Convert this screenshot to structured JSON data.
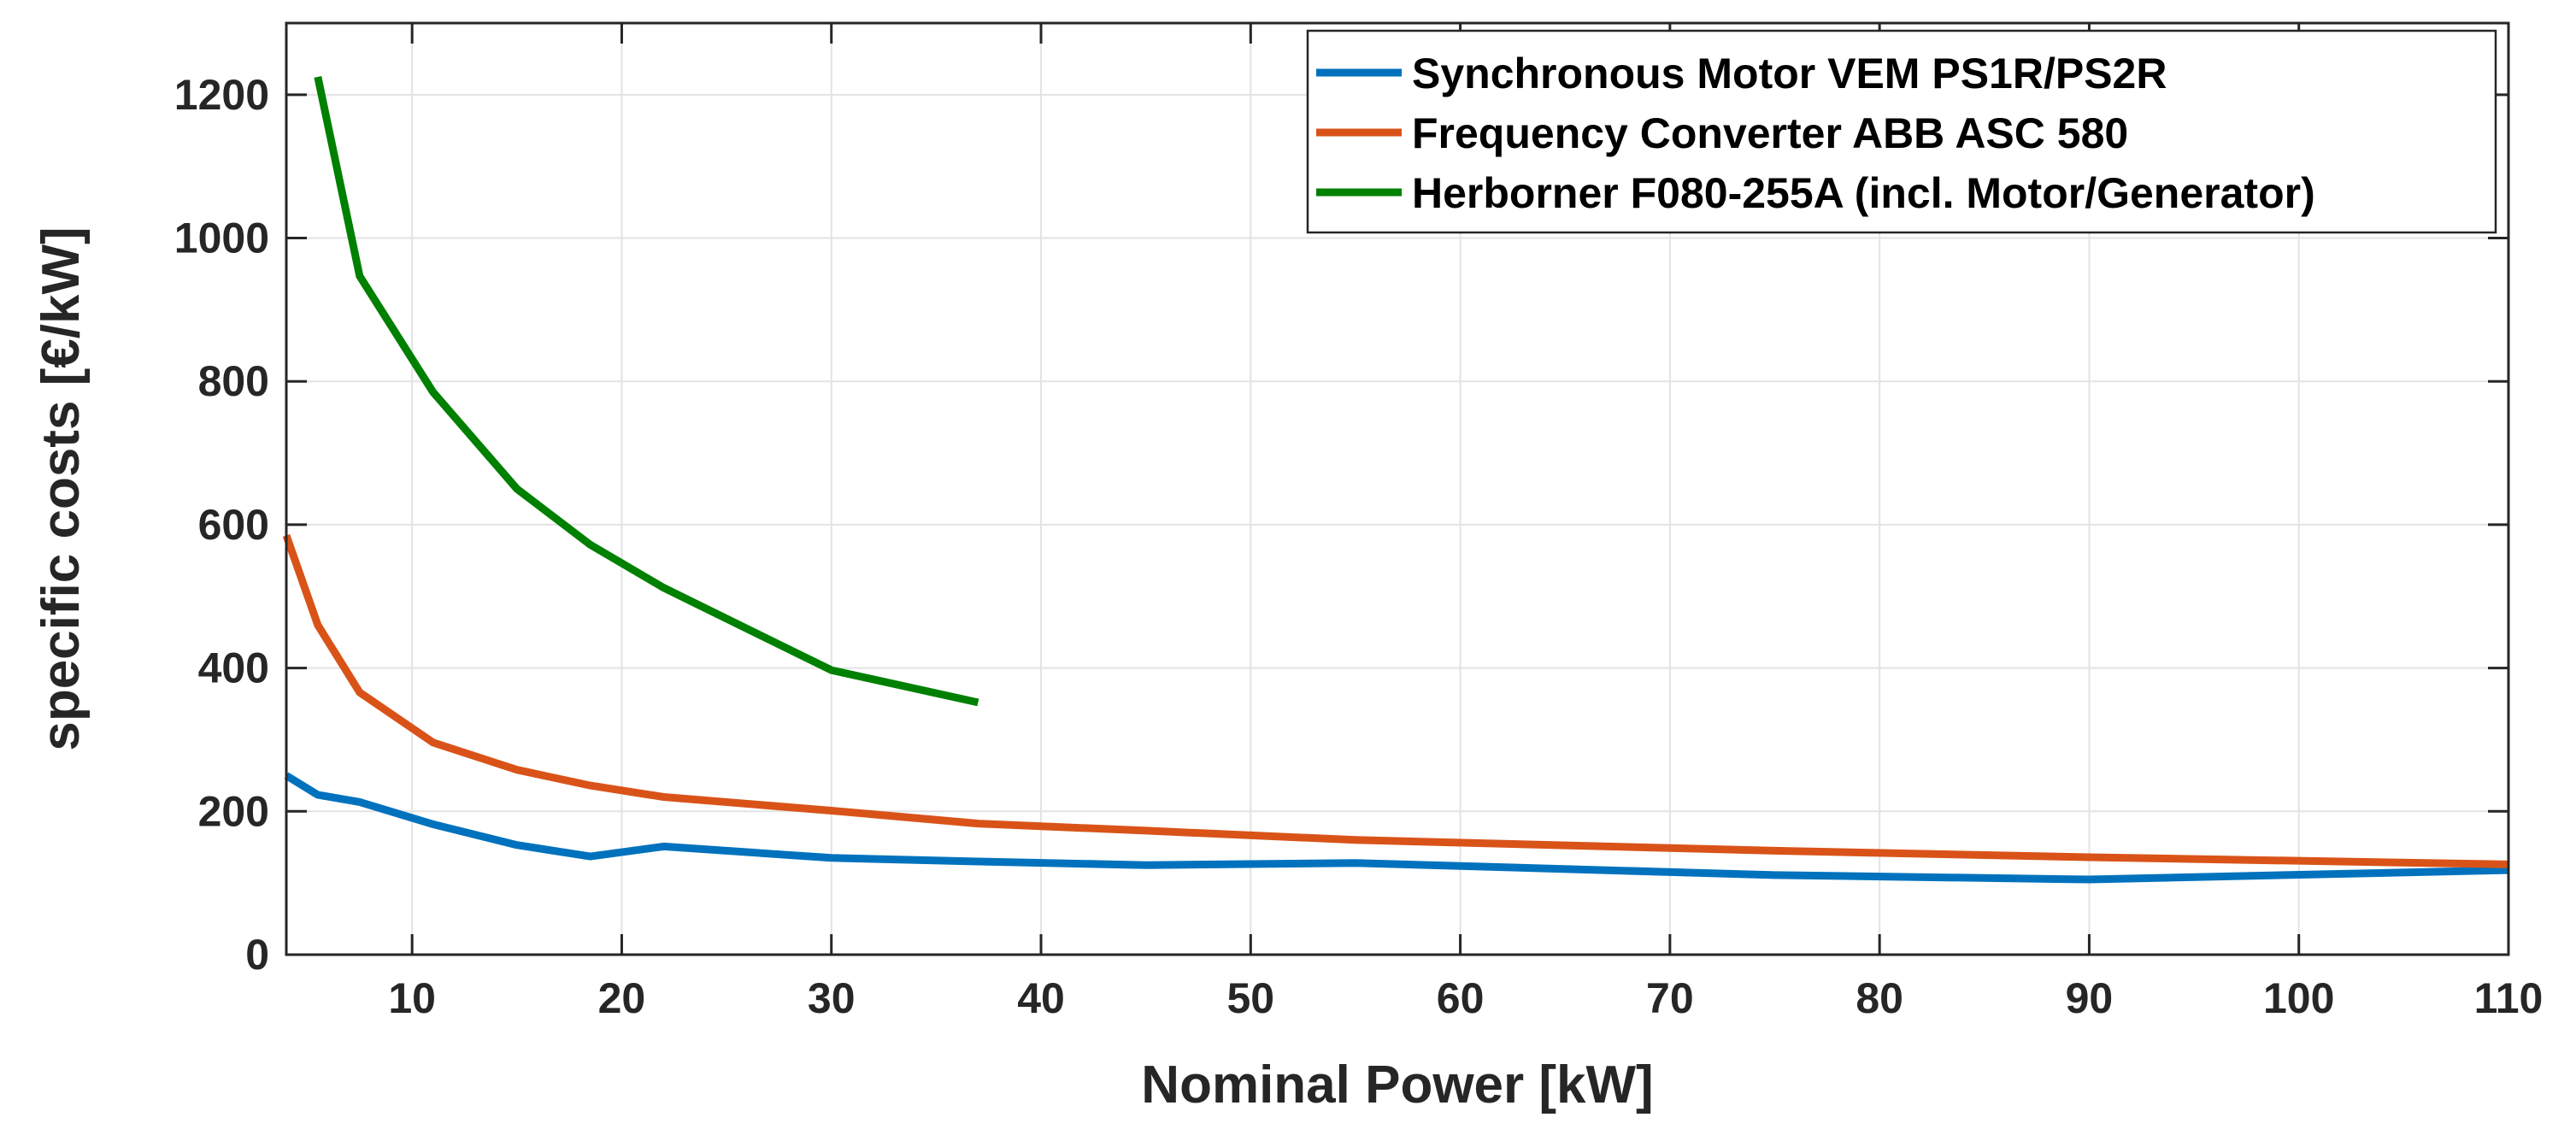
{
  "chart_data": {
    "type": "line",
    "title": "",
    "xlabel": "Nominal Power [kW]",
    "ylabel": "specific costs [€/kW]",
    "xlim": [
      4,
      110
    ],
    "ylim": [
      0,
      1300
    ],
    "xticks": [
      10,
      20,
      30,
      40,
      50,
      60,
      70,
      80,
      90,
      100,
      110
    ],
    "yticks": [
      0,
      200,
      400,
      600,
      800,
      1000,
      1200
    ],
    "grid": true,
    "legend_position": "top-right",
    "series": [
      {
        "name": "Synchronous Motor VEM PS1R/PS2R",
        "color": "#0072BD",
        "x": [
          4,
          5.5,
          7.5,
          11,
          15,
          18.5,
          22,
          30,
          37,
          45,
          55,
          75,
          90,
          110
        ],
        "y": [
          250,
          223,
          213,
          182,
          153,
          137,
          151,
          135,
          130,
          125,
          128,
          111,
          105,
          118
        ]
      },
      {
        "name": "Frequency Converter ABB ASC 580",
        "color": "#D95319",
        "x": [
          4,
          5.5,
          7.5,
          11,
          15,
          18.5,
          22,
          30,
          37,
          45,
          55,
          75,
          90,
          110
        ],
        "y": [
          585,
          460,
          366,
          296,
          258,
          236,
          220,
          201,
          183,
          173,
          160,
          145,
          136,
          126
        ]
      },
      {
        "name": "Herborner F080-255A (incl. Motor/Generator)",
        "color": "#008000",
        "x": [
          5.5,
          7.5,
          11,
          15,
          18.5,
          22,
          30,
          37
        ],
        "y": [
          1225,
          947,
          785,
          650,
          572,
          512,
          397,
          352
        ]
      }
    ]
  }
}
